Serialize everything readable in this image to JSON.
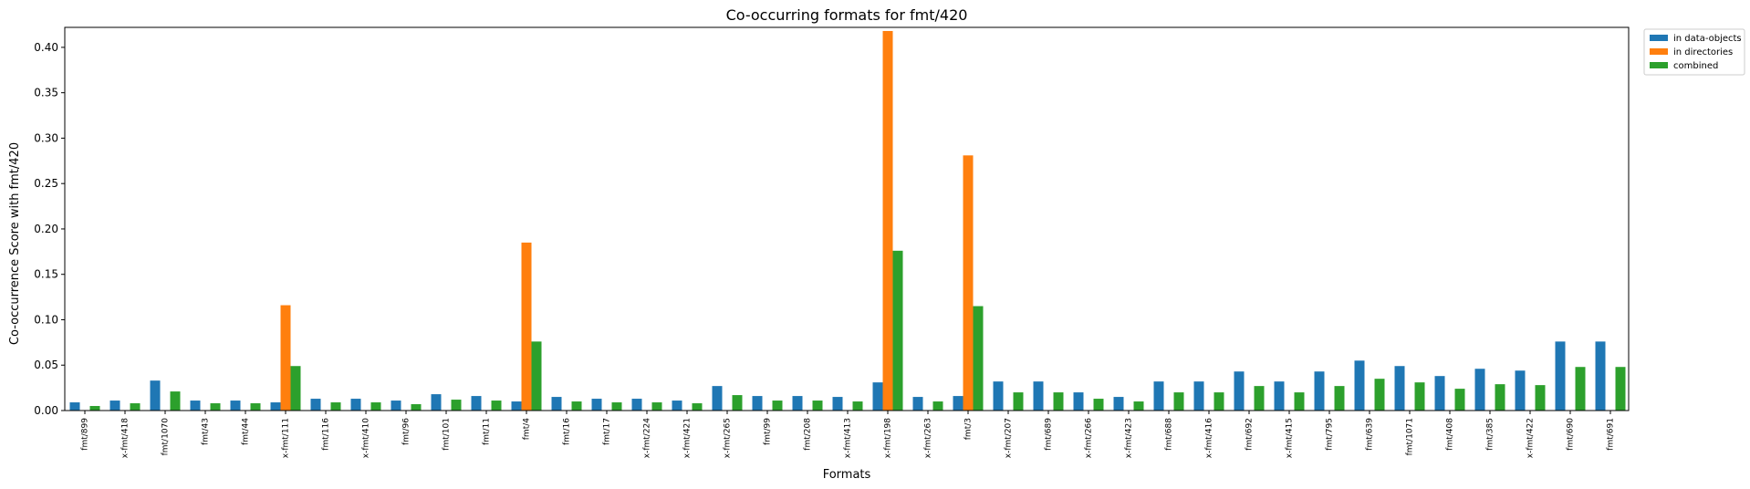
{
  "chart_data": {
    "type": "bar",
    "title": "Co-occurring formats for fmt/420",
    "xlabel": "Formats",
    "ylabel": "Co-occurrence Score with fmt/420",
    "ylim": [
      0,
      0.422
    ],
    "yticks": [
      "0.00",
      "0.05",
      "0.10",
      "0.15",
      "0.20",
      "0.25",
      "0.30",
      "0.35",
      "0.40"
    ],
    "legend_position": "outside-top-right",
    "categories": [
      "fmt/899",
      "x-fmt/418",
      "fmt/1070",
      "fmt/43",
      "fmt/44",
      "x-fmt/111",
      "fmt/116",
      "x-fmt/410",
      "fmt/96",
      "fmt/101",
      "fmt/11",
      "fmt/4",
      "fmt/16",
      "fmt/17",
      "x-fmt/224",
      "x-fmt/421",
      "x-fmt/265",
      "fmt/99",
      "fmt/208",
      "x-fmt/413",
      "x-fmt/198",
      "x-fmt/263",
      "fmt/3",
      "x-fmt/207",
      "fmt/689",
      "x-fmt/266",
      "x-fmt/423",
      "fmt/688",
      "x-fmt/416",
      "fmt/692",
      "x-fmt/415",
      "fmt/795",
      "fmt/639",
      "fmt/1071",
      "fmt/408",
      "fmt/385",
      "x-fmt/422",
      "fmt/690",
      "fmt/691"
    ],
    "series": [
      {
        "name": "in data-objects",
        "color": "#1f77b4",
        "values": [
          0.009,
          0.011,
          0.033,
          0.011,
          0.011,
          0.009,
          0.013,
          0.013,
          0.011,
          0.018,
          0.016,
          0.01,
          0.015,
          0.013,
          0.013,
          0.011,
          0.027,
          0.016,
          0.016,
          0.015,
          0.031,
          0.015,
          0.016,
          0.032,
          0.032,
          0.02,
          0.015,
          0.032,
          0.032,
          0.043,
          0.032,
          0.043,
          0.055,
          0.049,
          0.038,
          0.046,
          0.044,
          0.076,
          0.076
        ]
      },
      {
        "name": "in directories",
        "color": "#ff7f0e",
        "values": [
          0,
          0,
          0,
          0,
          0,
          0.116,
          0,
          0,
          0,
          0,
          0,
          0.185,
          0,
          0,
          0,
          0,
          0,
          0,
          0,
          0,
          0.418,
          0,
          0.281,
          0,
          0,
          0,
          0,
          0,
          0,
          0,
          0,
          0,
          0,
          0,
          0,
          0,
          0,
          0,
          0
        ]
      },
      {
        "name": "combined",
        "color": "#2ca02c",
        "values": [
          0.005,
          0.008,
          0.021,
          0.008,
          0.008,
          0.049,
          0.009,
          0.009,
          0.007,
          0.012,
          0.011,
          0.076,
          0.01,
          0.009,
          0.009,
          0.008,
          0.017,
          0.011,
          0.011,
          0.01,
          0.176,
          0.01,
          0.115,
          0.02,
          0.02,
          0.013,
          0.01,
          0.02,
          0.02,
          0.027,
          0.02,
          0.027,
          0.035,
          0.031,
          0.024,
          0.029,
          0.028,
          0.048,
          0.048
        ]
      }
    ]
  }
}
